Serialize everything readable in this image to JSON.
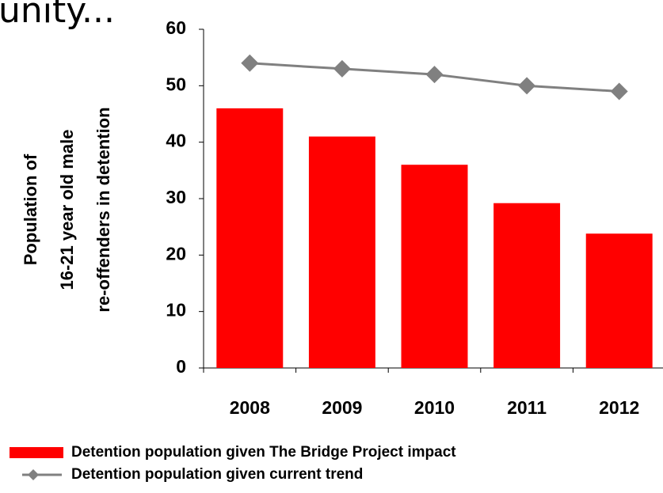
{
  "chart_data": {
    "type": "combo",
    "title": "unity...",
    "y_label": [
      "Population of",
      "16-21 year old male",
      "re-offenders in detention"
    ],
    "categories": [
      "2008",
      "2009",
      "2010",
      "2011",
      "2012"
    ],
    "series": [
      {
        "name": "Detention population given The Bridge Project impact",
        "type": "bar",
        "color": "#ff0000",
        "values": [
          46,
          41,
          36,
          29.2,
          23.8
        ]
      },
      {
        "name": "Detention population given current trend",
        "type": "line",
        "color": "#808080",
        "values": [
          54,
          53,
          52,
          50,
          49
        ]
      }
    ],
    "ylim": [
      0,
      60
    ],
    "yticks": [
      0,
      10,
      20,
      30,
      40,
      50,
      60
    ],
    "grid": false,
    "legend": "bottom"
  }
}
